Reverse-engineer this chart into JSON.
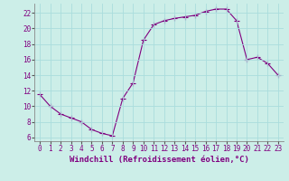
{
  "x": [
    0,
    1,
    2,
    3,
    4,
    5,
    6,
    7,
    8,
    9,
    10,
    11,
    12,
    13,
    14,
    15,
    16,
    17,
    18,
    19,
    20,
    21,
    22,
    23
  ],
  "y": [
    11.5,
    10.0,
    9.0,
    8.5,
    8.0,
    7.0,
    6.5,
    6.2,
    11.0,
    13.0,
    18.5,
    20.5,
    21.0,
    21.3,
    21.5,
    21.7,
    22.2,
    22.5,
    22.5,
    21.0,
    16.0,
    16.3,
    15.5,
    14.0
  ],
  "line_color": "#800080",
  "marker": "+",
  "marker_size": 4,
  "bg_color": "#cceee8",
  "grid_color": "#aadddd",
  "ylabel_values": [
    6,
    8,
    10,
    12,
    14,
    16,
    18,
    20,
    22
  ],
  "xlabel": "Windchill (Refroidissement éolien,°C)",
  "xlabel_fontsize": 6.5,
  "tick_fontsize": 5.5,
  "ylim": [
    5.5,
    23.2
  ],
  "xlim": [
    -0.5,
    23.5
  ]
}
